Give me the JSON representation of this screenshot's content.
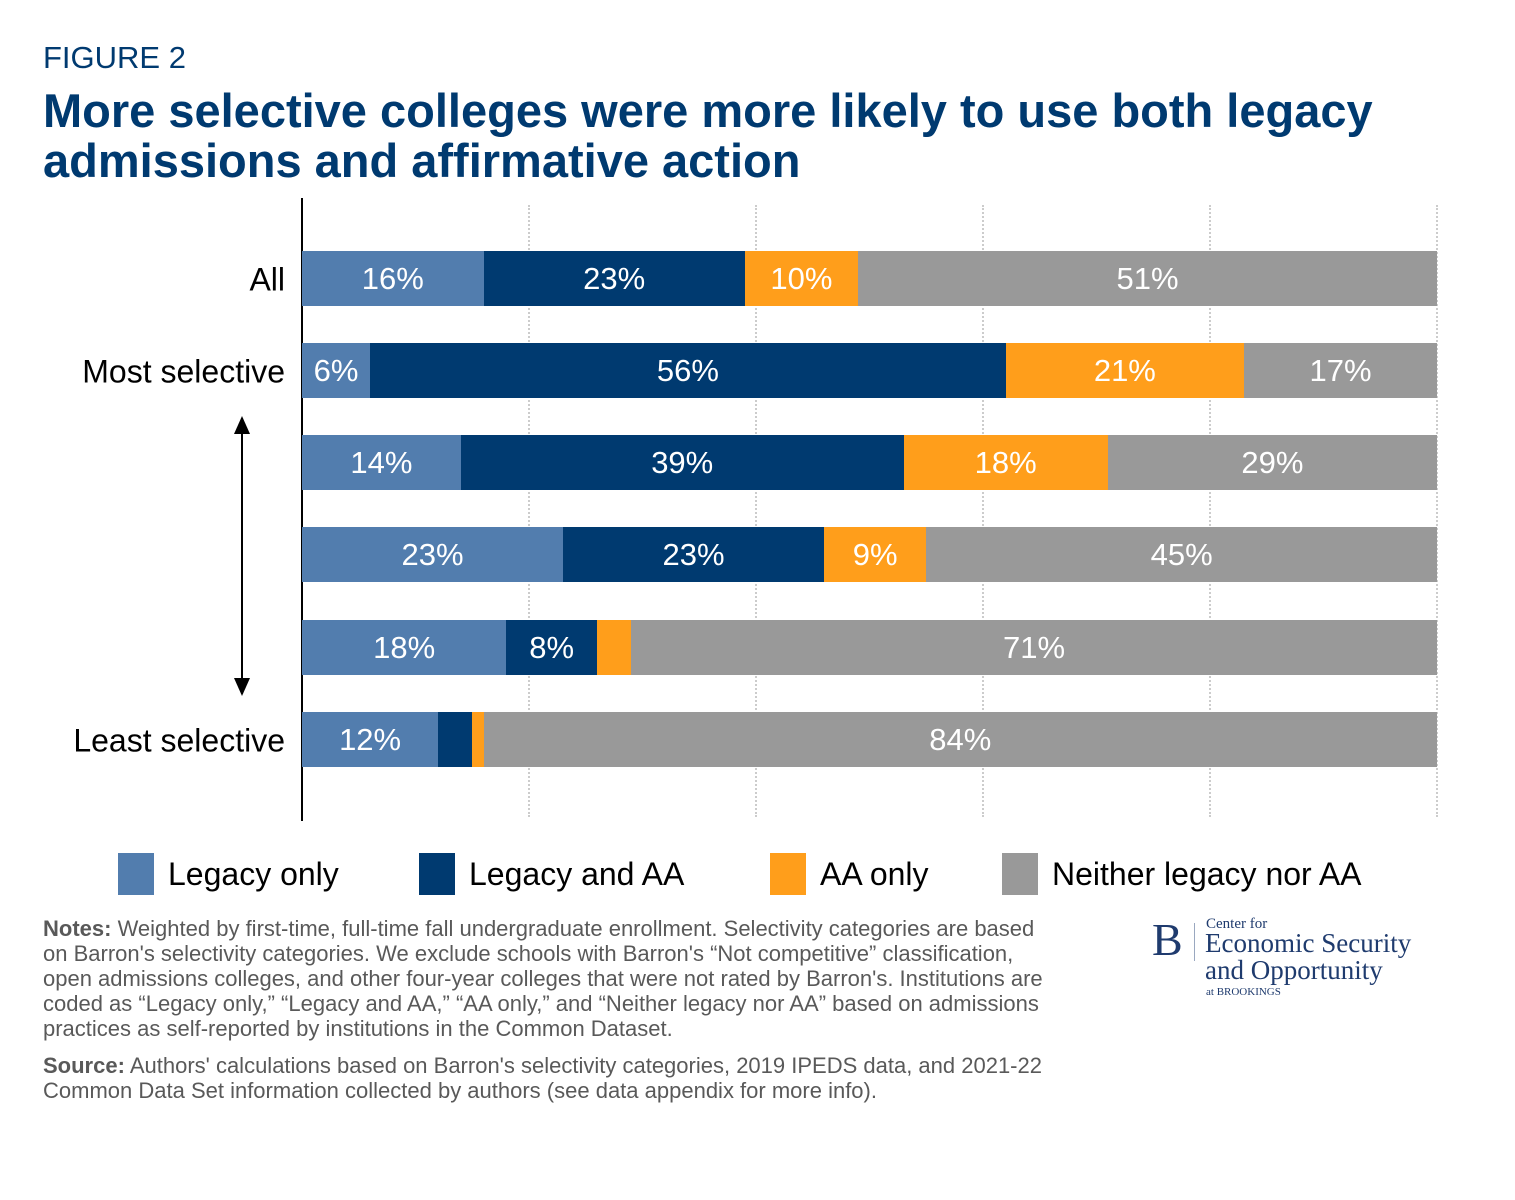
{
  "figure_label": "FIGURE 2",
  "chart_data": {
    "type": "bar",
    "orientation": "horizontal",
    "stacked": true,
    "title": "More selective colleges were more likely to use both legacy admissions and affirmative action",
    "categories": [
      "All",
      "Most selective",
      "",
      "",
      "",
      "Least selective"
    ],
    "xlim": [
      0,
      100
    ],
    "grid": true,
    "legend_position": "bottom",
    "series": [
      {
        "name": "Legacy only",
        "color": "#527DAE",
        "values": [
          16,
          6,
          14,
          23,
          18,
          12
        ],
        "labels": [
          "16%",
          "6%",
          "14%",
          "23%",
          "18%",
          "12%"
        ]
      },
      {
        "name": "Legacy and AA",
        "color": "#003A70",
        "values": [
          23,
          56,
          39,
          23,
          8,
          3
        ],
        "labels": [
          "23%",
          "56%",
          "39%",
          "23%",
          "8%",
          ""
        ]
      },
      {
        "name": "AA only",
        "color": "#FF9E1B",
        "values": [
          10,
          21,
          18,
          9,
          3,
          1
        ],
        "labels": [
          "10%",
          "21%",
          "18%",
          "9%",
          "",
          ""
        ]
      },
      {
        "name": "Neither legacy nor AA",
        "color": "#999999",
        "values": [
          51,
          17,
          29,
          45,
          71,
          84
        ],
        "labels": [
          "51%",
          "17%",
          "29%",
          "45%",
          "71%",
          "84%"
        ]
      }
    ]
  },
  "notes": {
    "notes_label": "Notes:",
    "notes_text": " Weighted by first-time, full-time fall undergraduate enrollment. Selectivity categories are based on Barron's selectivity categories. We exclude schools with Barron's “Not competitive” classification, open admissions colleges, and other four-year colleges that were not rated by Barron's. Institutions are coded as “Legacy only,” “Legacy and AA,” “AA only,” and “Neither legacy nor AA” based on admissions practices as self-reported by institutions in the Common Dataset.",
    "source_label": "Source:",
    "source_text": " Authors' calculations based on Barron's selectivity categories, 2019 IPEDS data, and 2021-22 Common Data Set information collected by authors (see data appendix for more info)."
  },
  "logo": {
    "mark": "B",
    "line1": "Center for",
    "line2": "Economic Security",
    "line3": "and Opportunity",
    "line4": "at BROOKINGS"
  }
}
